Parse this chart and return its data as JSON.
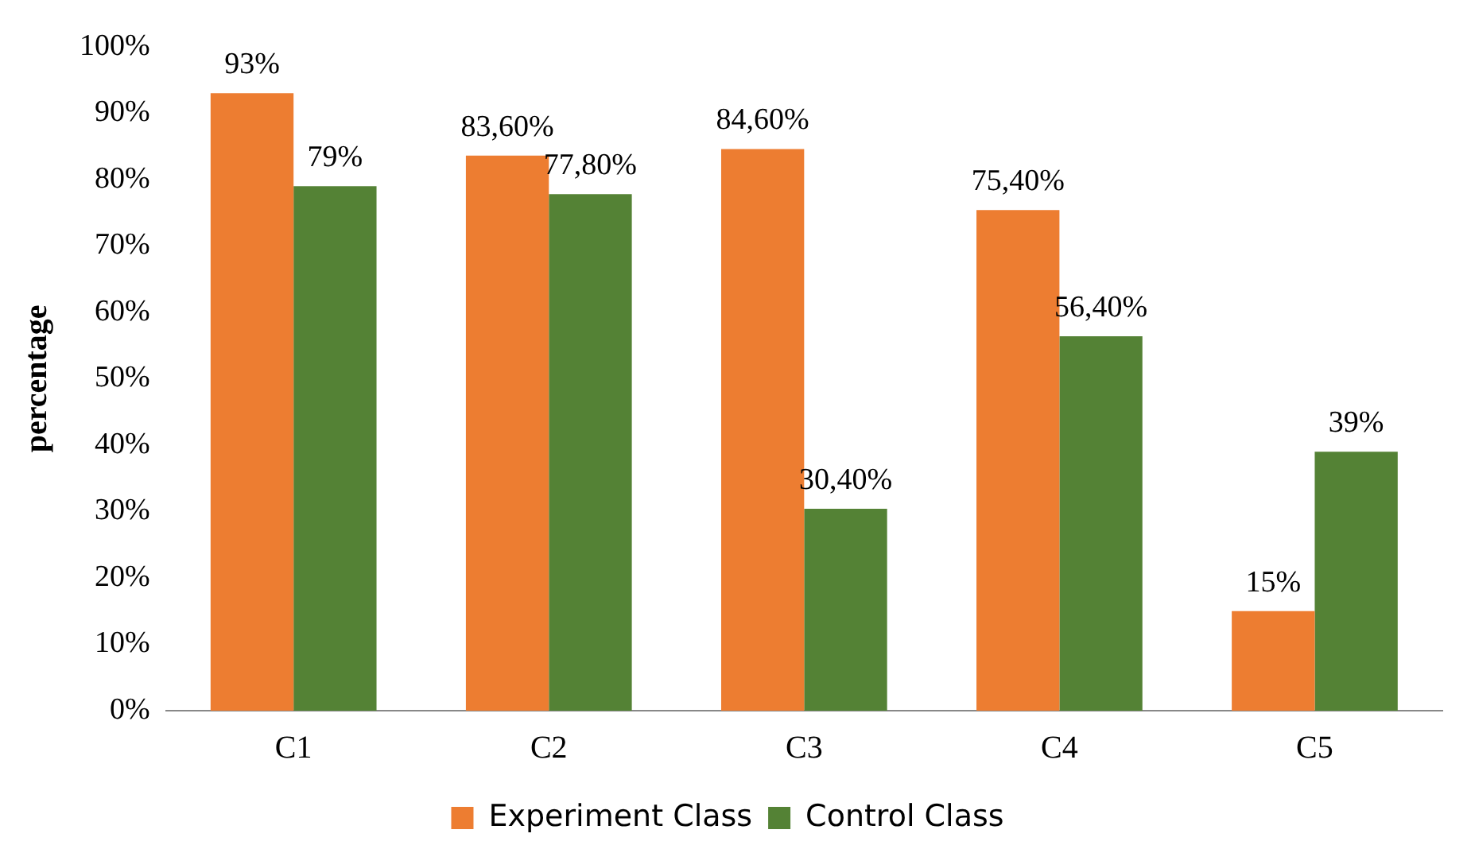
{
  "chart_data": {
    "type": "bar",
    "ylabel": "percentage",
    "categories": [
      "C1",
      "C2",
      "C3",
      "C4",
      "C5"
    ],
    "series": [
      {
        "name": "Experiment Class",
        "color": "#ed7d31",
        "values": [
          93,
          83.6,
          84.6,
          75.4,
          15
        ],
        "value_labels": [
          "93%",
          "83,60%",
          "84,60%",
          "75,40%",
          "15%"
        ]
      },
      {
        "name": "Control Class",
        "color": "#548235",
        "values": [
          79,
          77.8,
          30.4,
          56.4,
          39
        ],
        "value_labels": [
          "79%",
          "77,80%",
          "30,40%",
          "56,40%",
          "39%"
        ]
      }
    ],
    "ylim": [
      0,
      100
    ],
    "yticks": [
      {
        "value": 0,
        "label": "0%"
      },
      {
        "value": 10,
        "label": "10%"
      },
      {
        "value": 20,
        "label": "20%"
      },
      {
        "value": 30,
        "label": "30%"
      },
      {
        "value": 40,
        "label": "40%"
      },
      {
        "value": 50,
        "label": "50%"
      },
      {
        "value": 60,
        "label": "60%"
      },
      {
        "value": 70,
        "label": "70%"
      },
      {
        "value": 80,
        "label": "80%"
      },
      {
        "value": 90,
        "label": "90%"
      },
      {
        "value": 100,
        "label": "100%"
      }
    ],
    "grid": false,
    "legend": "bottom"
  }
}
